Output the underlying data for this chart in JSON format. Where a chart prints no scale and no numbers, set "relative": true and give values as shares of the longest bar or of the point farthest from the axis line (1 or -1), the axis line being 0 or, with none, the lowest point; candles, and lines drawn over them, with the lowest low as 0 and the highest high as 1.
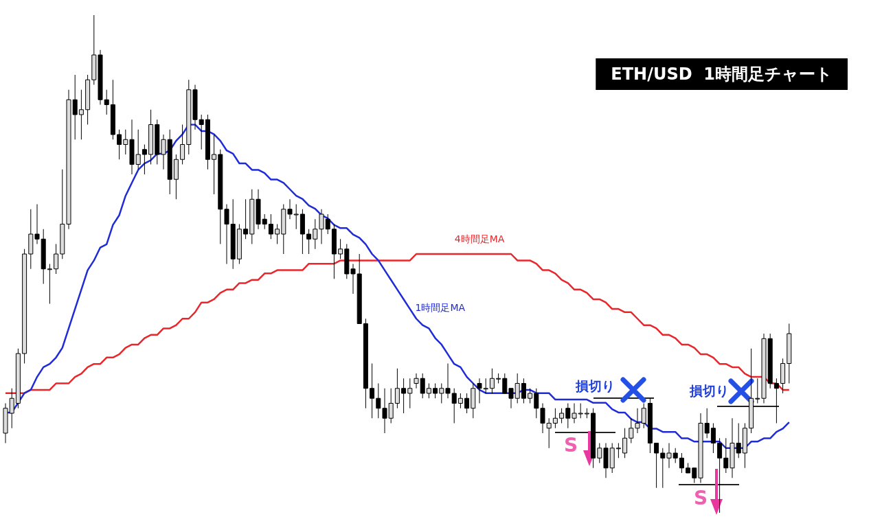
{
  "chart_data": [
    {
      "type": "candlestick",
      "title": "ETH/USD  1時間足チャート",
      "relative": true,
      "annotations": [
        "損切り",
        "損切り",
        "S",
        "S"
      ],
      "categories": [
        null,
        null,
        null,
        null,
        null,
        null,
        null,
        null,
        null,
        null,
        null,
        null,
        null,
        null,
        null,
        null,
        null,
        null,
        null,
        null,
        null,
        null,
        null,
        null,
        null,
        null,
        null,
        null,
        null,
        null,
        null,
        null,
        null,
        null,
        null,
        null,
        null,
        null,
        null,
        null,
        null,
        null,
        null,
        null,
        null,
        null,
        null,
        null,
        null,
        null,
        null,
        null,
        null,
        null,
        null,
        null,
        null,
        null,
        null,
        null,
        null,
        null,
        null,
        null,
        null,
        null,
        null,
        null,
        null,
        null,
        null,
        null,
        null,
        null,
        null,
        null,
        null,
        null,
        null,
        null,
        null,
        null,
        null,
        null,
        null,
        null,
        null,
        null,
        null,
        null,
        null,
        null,
        null,
        null,
        null,
        null,
        null,
        null,
        null,
        null,
        null,
        null,
        null,
        null,
        null,
        null,
        null,
        null,
        null,
        null,
        null,
        null,
        null,
        null,
        null,
        null,
        null,
        null,
        null,
        null,
        null,
        null,
        null,
        null,
        null
      ],
      "ohlc": [
        [
          0.16,
          0.22,
          0.14,
          0.21
        ],
        [
          0.2,
          0.25,
          0.17,
          0.23
        ],
        [
          0.22,
          0.33,
          0.21,
          0.32
        ],
        [
          0.32,
          0.53,
          0.3,
          0.52
        ],
        [
          0.52,
          0.61,
          0.49,
          0.56
        ],
        [
          0.56,
          0.62,
          0.54,
          0.55
        ],
        [
          0.55,
          0.57,
          0.46,
          0.49
        ],
        [
          0.49,
          0.5,
          0.42,
          0.49
        ],
        [
          0.49,
          0.54,
          0.48,
          0.52
        ],
        [
          0.52,
          0.69,
          0.51,
          0.58
        ],
        [
          0.58,
          0.85,
          0.57,
          0.83
        ],
        [
          0.83,
          0.88,
          0.75,
          0.8
        ],
        [
          0.8,
          0.85,
          0.75,
          0.81
        ],
        [
          0.81,
          0.88,
          0.78,
          0.87
        ],
        [
          0.87,
          1.0,
          0.86,
          0.92
        ],
        [
          0.92,
          0.93,
          0.82,
          0.83
        ],
        [
          0.83,
          0.85,
          0.8,
          0.82
        ],
        [
          0.82,
          0.87,
          0.75,
          0.76
        ],
        [
          0.76,
          0.77,
          0.71,
          0.74
        ],
        [
          0.74,
          0.77,
          0.72,
          0.75
        ],
        [
          0.75,
          0.79,
          0.68,
          0.7
        ],
        [
          0.7,
          0.77,
          0.69,
          0.72
        ],
        [
          0.73,
          0.74,
          0.68,
          0.72
        ],
        [
          0.72,
          0.81,
          0.7,
          0.78
        ],
        [
          0.78,
          0.79,
          0.7,
          0.72
        ],
        [
          0.72,
          0.76,
          0.69,
          0.75
        ],
        [
          0.75,
          0.77,
          0.64,
          0.67
        ],
        [
          0.67,
          0.72,
          0.63,
          0.71
        ],
        [
          0.71,
          0.78,
          0.7,
          0.74
        ],
        [
          0.74,
          0.87,
          0.72,
          0.85
        ],
        [
          0.85,
          0.86,
          0.77,
          0.79
        ],
        [
          0.79,
          0.8,
          0.73,
          0.78
        ],
        [
          0.79,
          0.8,
          0.69,
          0.71
        ],
        [
          0.71,
          0.76,
          0.64,
          0.72
        ],
        [
          0.72,
          0.73,
          0.54,
          0.61
        ],
        [
          0.61,
          0.62,
          0.5,
          0.58
        ],
        [
          0.58,
          0.63,
          0.49,
          0.51
        ],
        [
          0.51,
          0.58,
          0.5,
          0.57
        ],
        [
          0.57,
          0.63,
          0.55,
          0.56
        ],
        [
          0.56,
          0.65,
          0.54,
          0.63
        ],
        [
          0.63,
          0.65,
          0.57,
          0.58
        ],
        [
          0.59,
          0.6,
          0.57,
          0.58
        ],
        [
          0.58,
          0.6,
          0.55,
          0.56
        ],
        [
          0.56,
          0.58,
          0.54,
          0.57
        ],
        [
          0.56,
          0.62,
          0.52,
          0.61
        ],
        [
          0.61,
          0.63,
          0.59,
          0.6
        ],
        [
          0.6,
          0.62,
          0.57,
          0.6
        ],
        [
          0.6,
          0.61,
          0.52,
          0.56
        ],
        [
          0.56,
          0.57,
          0.52,
          0.55
        ],
        [
          0.55,
          0.59,
          0.53,
          0.57
        ],
        [
          0.57,
          0.61,
          0.54,
          0.6
        ],
        [
          0.59,
          0.6,
          0.56,
          0.57
        ],
        [
          0.57,
          0.58,
          0.47,
          0.52
        ],
        [
          0.52,
          0.55,
          0.51,
          0.53
        ],
        [
          0.53,
          0.54,
          0.47,
          0.48
        ],
        [
          0.49,
          0.5,
          0.44,
          0.48
        ],
        [
          0.48,
          0.52,
          0.38,
          0.38
        ],
        [
          0.38,
          0.39,
          0.21,
          0.25
        ],
        [
          0.25,
          0.3,
          0.19,
          0.23
        ],
        [
          0.23,
          0.26,
          0.19,
          0.21
        ],
        [
          0.21,
          0.25,
          0.16,
          0.19
        ],
        [
          0.19,
          0.25,
          0.18,
          0.22
        ],
        [
          0.22,
          0.29,
          0.21,
          0.25
        ],
        [
          0.25,
          0.27,
          0.2,
          0.24
        ],
        [
          0.24,
          0.27,
          0.21,
          0.25
        ],
        [
          0.26,
          0.28,
          0.25,
          0.27
        ],
        [
          0.27,
          0.28,
          0.23,
          0.24
        ],
        [
          0.24,
          0.26,
          0.23,
          0.25
        ],
        [
          0.25,
          0.26,
          0.23,
          0.24
        ],
        [
          0.24,
          0.26,
          0.22,
          0.25
        ],
        [
          0.25,
          0.3,
          0.23,
          0.24
        ],
        [
          0.24,
          0.25,
          0.18,
          0.22
        ],
        [
          0.22,
          0.24,
          0.21,
          0.23
        ],
        [
          0.23,
          0.24,
          0.2,
          0.21
        ],
        [
          0.21,
          0.26,
          0.19,
          0.25
        ],
        [
          0.26,
          0.27,
          0.22,
          0.25
        ],
        [
          0.25,
          0.27,
          0.24,
          0.25
        ],
        [
          0.25,
          0.29,
          0.24,
          0.27
        ],
        [
          0.27,
          0.28,
          0.26,
          0.27
        ],
        [
          0.27,
          0.28,
          0.24,
          0.24
        ],
        [
          0.25,
          0.25,
          0.21,
          0.23
        ],
        [
          0.23,
          0.28,
          0.22,
          0.26
        ],
        [
          0.26,
          0.27,
          0.22,
          0.23
        ],
        [
          0.23,
          0.25,
          0.22,
          0.24
        ],
        [
          0.24,
          0.25,
          0.19,
          0.21
        ],
        [
          0.21,
          0.22,
          0.16,
          0.18
        ],
        [
          0.17,
          0.19,
          0.13,
          0.18
        ],
        [
          0.18,
          0.21,
          0.17,
          0.19
        ],
        [
          0.19,
          0.21,
          0.18,
          0.2
        ],
        [
          0.21,
          0.22,
          0.17,
          0.19
        ],
        [
          0.19,
          0.22,
          0.18,
          0.2
        ],
        [
          0.2,
          0.22,
          0.19,
          0.2
        ],
        [
          0.2,
          0.21,
          0.19,
          0.2
        ],
        [
          0.2,
          0.21,
          0.09,
          0.11
        ],
        [
          0.11,
          0.14,
          0.1,
          0.13
        ],
        [
          0.13,
          0.14,
          0.07,
          0.09
        ],
        [
          0.09,
          0.14,
          0.08,
          0.13
        ],
        [
          0.13,
          0.14,
          0.11,
          0.13
        ],
        [
          0.12,
          0.17,
          0.11,
          0.15
        ],
        [
          0.15,
          0.19,
          0.14,
          0.17
        ],
        [
          0.17,
          0.21,
          0.16,
          0.18
        ],
        [
          0.18,
          0.22,
          0.17,
          0.21
        ],
        [
          0.22,
          0.23,
          0.12,
          0.14
        ],
        [
          0.14,
          0.14,
          0.05,
          0.12
        ],
        [
          0.12,
          0.13,
          0.05,
          0.11
        ],
        [
          0.11,
          0.14,
          0.09,
          0.12
        ],
        [
          0.12,
          0.13,
          0.1,
          0.11
        ],
        [
          0.11,
          0.12,
          0.08,
          0.09
        ],
        [
          0.09,
          0.1,
          0.08,
          0.08
        ],
        [
          0.09,
          0.09,
          0.06,
          0.07
        ],
        [
          0.07,
          0.2,
          0.06,
          0.18
        ],
        [
          0.18,
          0.21,
          0.15,
          0.16
        ],
        [
          0.17,
          0.18,
          0.12,
          0.14
        ],
        [
          0.14,
          0.15,
          0,
          0.11
        ],
        [
          0.11,
          0.15,
          0.08,
          0.09
        ],
        [
          0.09,
          0.19,
          0.07,
          0.14
        ],
        [
          0.14,
          0.18,
          0.11,
          0.12
        ],
        [
          0.12,
          0.18,
          0.09,
          0.17
        ],
        [
          0.17,
          0.33,
          0.16,
          0.23
        ],
        [
          0.23,
          0.27,
          0.22,
          0.23
        ],
        [
          0.23,
          0.36,
          0.22,
          0.35
        ],
        [
          0.35,
          0.36,
          0.25,
          0.26
        ],
        [
          0.26,
          0.27,
          0.18,
          0.25
        ],
        [
          0.26,
          0.31,
          0.24,
          0.3
        ],
        [
          0.3,
          0.38,
          0.26,
          0.36
        ]
      ]
    },
    {
      "type": "line",
      "relative": true,
      "marker": "none",
      "categories": [
        null,
        null,
        null,
        null,
        null,
        null,
        null,
        null,
        null,
        null,
        null,
        null,
        null,
        null,
        null,
        null,
        null,
        null,
        null,
        null,
        null,
        null,
        null,
        null,
        null,
        null,
        null,
        null,
        null,
        null,
        null,
        null,
        null,
        null,
        null,
        null,
        null,
        null,
        null,
        null,
        null,
        null,
        null,
        null,
        null,
        null,
        null,
        null,
        null,
        null,
        null,
        null,
        null,
        null,
        null,
        null,
        null,
        null,
        null,
        null,
        null,
        null,
        null,
        null,
        null,
        null,
        null,
        null,
        null,
        null,
        null,
        null,
        null,
        null,
        null,
        null,
        null,
        null,
        null,
        null,
        null,
        null,
        null,
        null,
        null,
        null,
        null,
        null,
        null,
        null,
        null,
        null,
        null,
        null,
        null,
        null,
        null,
        null,
        null,
        null,
        null,
        null,
        null,
        null,
        null,
        null,
        null,
        null,
        null,
        null,
        null,
        null,
        null,
        null,
        null,
        null,
        null,
        null,
        null,
        null,
        null,
        null,
        null,
        null,
        null
      ],
      "series": [
        {
          "name": "4時間足MA",
          "color": "#e8262b",
          "values": [
            0.17,
            0.17,
            0.17,
            0.17,
            0.18,
            0.18,
            0.18,
            0.18,
            0.2,
            0.2,
            0.2,
            0.22,
            0.23,
            0.25,
            0.26,
            0.26,
            0.28,
            0.28,
            0.29,
            0.31,
            0.32,
            0.32,
            0.34,
            0.35,
            0.35,
            0.37,
            0.37,
            0.38,
            0.4,
            0.4,
            0.42,
            0.45,
            0.45,
            0.46,
            0.48,
            0.49,
            0.49,
            0.51,
            0.51,
            0.52,
            0.52,
            0.54,
            0.54,
            0.55,
            0.55,
            0.55,
            0.55,
            0.55,
            0.57,
            0.57,
            0.57,
            0.57,
            0.57,
            0.58,
            0.58,
            0.58,
            0.58,
            0.58,
            0.58,
            0.58,
            0.58,
            0.58,
            0.58,
            0.58,
            0.58,
            0.6,
            0.6,
            0.6,
            0.6,
            0.6,
            0.6,
            0.6,
            0.6,
            0.6,
            0.6,
            0.6,
            0.6,
            0.6,
            0.6,
            0.6,
            0.6,
            0.58,
            0.58,
            0.58,
            0.57,
            0.55,
            0.55,
            0.54,
            0.52,
            0.51,
            0.49,
            0.49,
            0.48,
            0.46,
            0.46,
            0.45,
            0.43,
            0.43,
            0.42,
            0.42,
            0.4,
            0.38,
            0.38,
            0.37,
            0.35,
            0.35,
            0.34,
            0.32,
            0.32,
            0.31,
            0.29,
            0.29,
            0.28,
            0.26,
            0.26,
            0.25,
            0.25,
            0.23,
            0.22,
            0.22,
            0.22,
            0.2,
            0.2,
            0.18,
            0.18
          ]
        },
        {
          "name": "1時間足MA",
          "color": "#1f2bd6",
          "values": [
            0.11,
            0.11,
            0.14,
            0.17,
            0.18,
            0.22,
            0.25,
            0.26,
            0.28,
            0.31,
            0.37,
            0.43,
            0.49,
            0.55,
            0.58,
            0.62,
            0.63,
            0.69,
            0.72,
            0.78,
            0.82,
            0.86,
            0.88,
            0.89,
            0.91,
            0.91,
            0.92,
            0.95,
            0.97,
            1.0,
            1.0,
            0.98,
            0.98,
            0.97,
            0.95,
            0.92,
            0.91,
            0.88,
            0.88,
            0.86,
            0.86,
            0.85,
            0.83,
            0.83,
            0.82,
            0.8,
            0.78,
            0.77,
            0.75,
            0.74,
            0.72,
            0.71,
            0.69,
            0.68,
            0.68,
            0.66,
            0.65,
            0.63,
            0.6,
            0.58,
            0.55,
            0.52,
            0.49,
            0.46,
            0.43,
            0.4,
            0.38,
            0.37,
            0.34,
            0.32,
            0.29,
            0.26,
            0.25,
            0.22,
            0.2,
            0.18,
            0.17,
            0.17,
            0.17,
            0.17,
            0.17,
            0.17,
            0.18,
            0.18,
            0.17,
            0.17,
            0.17,
            0.15,
            0.15,
            0.15,
            0.15,
            0.15,
            0.15,
            0.14,
            0.14,
            0.14,
            0.12,
            0.11,
            0.11,
            0.09,
            0.08,
            0.08,
            0.06,
            0.06,
            0.05,
            0.05,
            0.05,
            0.03,
            0.03,
            0.02,
            0.02,
            0.02,
            0.02,
            0.02,
            0,
            0,
            0,
            0,
            0.02,
            0.02,
            0.03,
            0.03,
            0.05,
            0.06,
            0.08
          ]
        }
      ]
    }
  ]
}
